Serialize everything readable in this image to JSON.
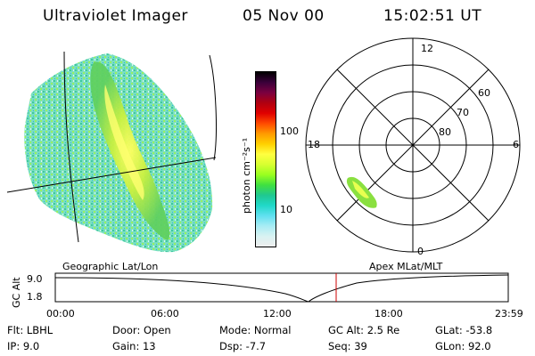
{
  "header": {
    "instrument": "Ultraviolet Imager",
    "date": "05 Nov 00",
    "time": "15:02:51 UT"
  },
  "colorbar": {
    "unit_label": "photon cm⁻²s⁻¹",
    "ticks": [
      "100",
      "10"
    ],
    "colors": [
      "#000000",
      "#3a003a",
      "#7a0040",
      "#b00010",
      "#e00000",
      "#ff4a00",
      "#ff9a00",
      "#ffd000",
      "#ffff40",
      "#d8ff30",
      "#9aff20",
      "#40e040",
      "#20c890",
      "#20d8c8",
      "#60e0f0",
      "#a8ecf4",
      "#d8f2f2",
      "#eeeeee"
    ]
  },
  "geo_panel": {
    "caption": "Geographic Lat/Lon"
  },
  "polar_panel": {
    "caption": "Apex MLat/MLT",
    "mlt_labels": {
      "top": "12",
      "left": "18",
      "right": "6",
      "bottom": "0"
    },
    "lat_labels": [
      "60",
      "70",
      "80"
    ]
  },
  "timeline": {
    "axis_label": "GC Alt",
    "y_ticks": [
      "9.0",
      "1.8"
    ],
    "x_ticks": [
      "00:00",
      "06:00",
      "12:00",
      "18:00",
      "23:59"
    ],
    "current_marker_color": "#cc0000"
  },
  "status": {
    "flt": "Flt: LBHL",
    "ip": "IP:  9.0",
    "door": "Door: Open",
    "gain": "Gain: 13",
    "mode": "Mode: Normal",
    "dsp": "Dsp:   -7.7",
    "gc_alt": "GC Alt: 2.5 Re",
    "seq": "Seq: 39",
    "glat": "GLat: -53.8",
    "glon": "GLon: 92.0"
  }
}
